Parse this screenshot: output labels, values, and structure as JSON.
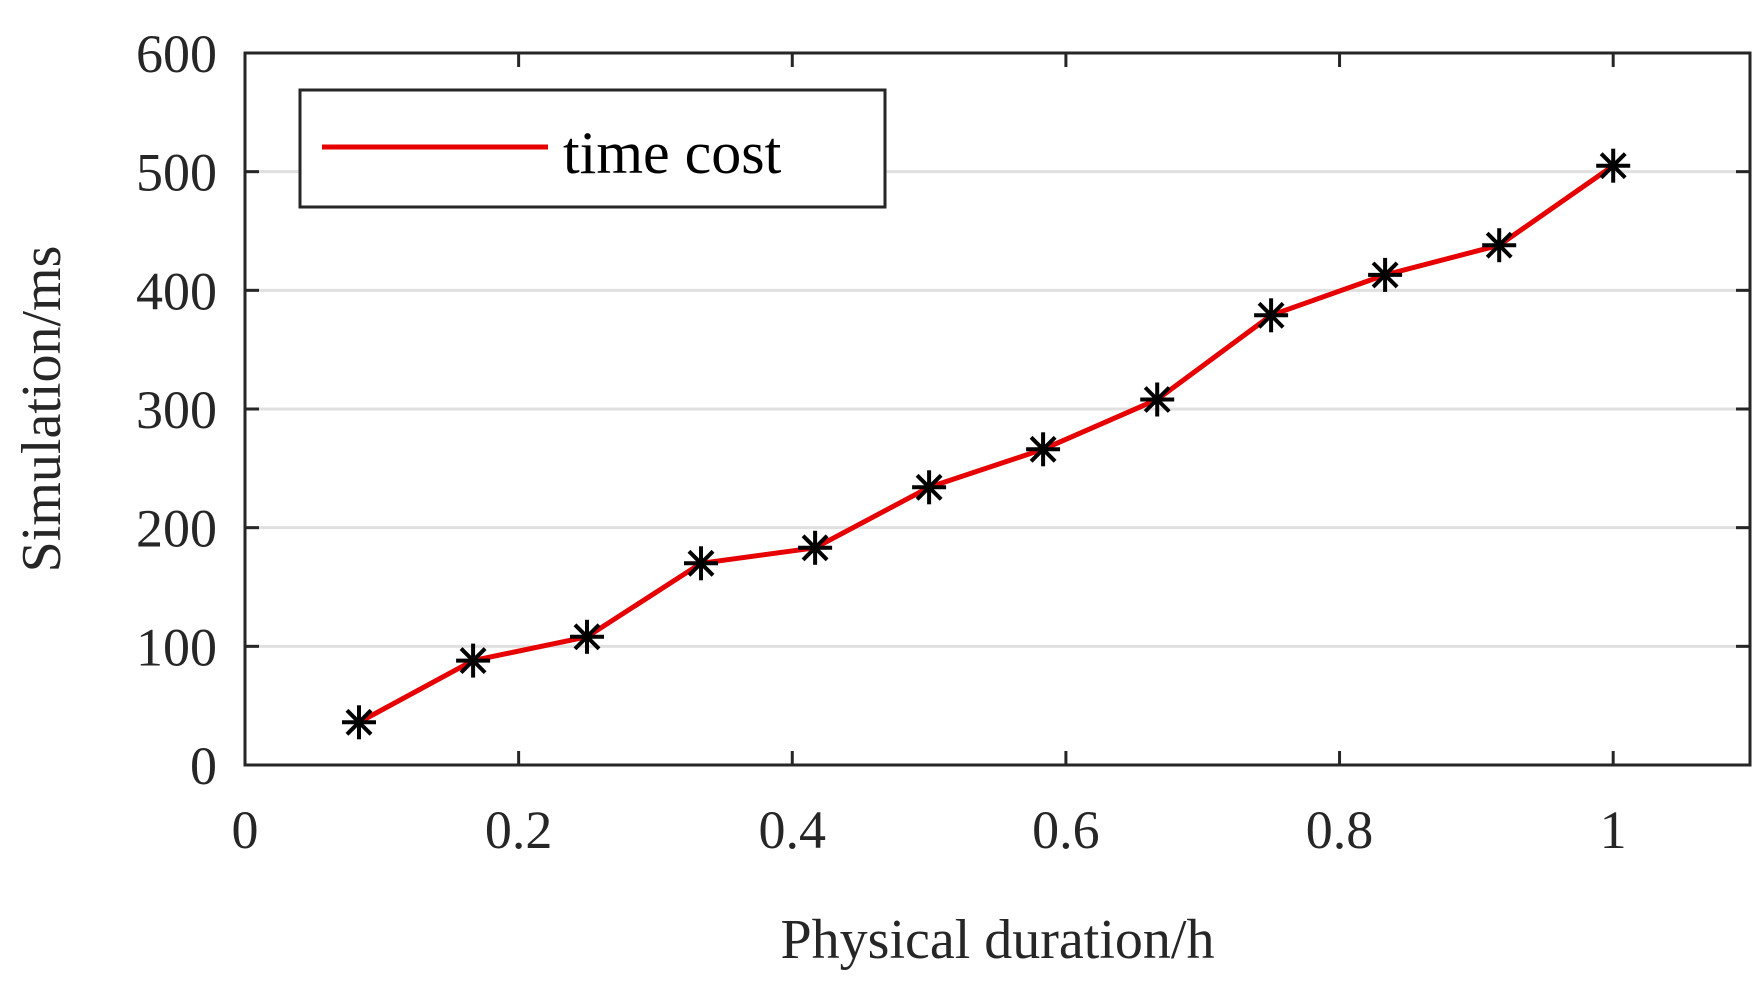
{
  "chart_data": {
    "type": "line",
    "title": "",
    "xlabel": "Physical duration/h",
    "ylabel": "Simulation/ms",
    "xlim": [
      0,
      1.1
    ],
    "ylim": [
      0,
      600
    ],
    "xticks": [
      0,
      0.2,
      0.4,
      0.6,
      0.8,
      1
    ],
    "xtick_labels": [
      "0",
      "0.2",
      "0.4",
      "0.6",
      "0.8",
      "1"
    ],
    "yticks": [
      0,
      100,
      200,
      300,
      400,
      500,
      600
    ],
    "ytick_labels": [
      "0",
      "100",
      "200",
      "300",
      "400",
      "500",
      "600"
    ],
    "grid": "horizontal",
    "legend": {
      "position": "top-left",
      "entries": [
        "time cost"
      ]
    },
    "series": [
      {
        "name": "time cost",
        "line_color": "#e60000",
        "marker": "asterisk",
        "marker_color": "#000000",
        "x": [
          0.0833,
          0.1667,
          0.25,
          0.3333,
          0.4167,
          0.5,
          0.5833,
          0.6667,
          0.75,
          0.8333,
          0.9167,
          1.0
        ],
        "values": [
          36,
          88,
          108,
          170,
          183,
          234,
          266,
          308,
          379,
          413,
          438,
          505
        ]
      }
    ]
  }
}
